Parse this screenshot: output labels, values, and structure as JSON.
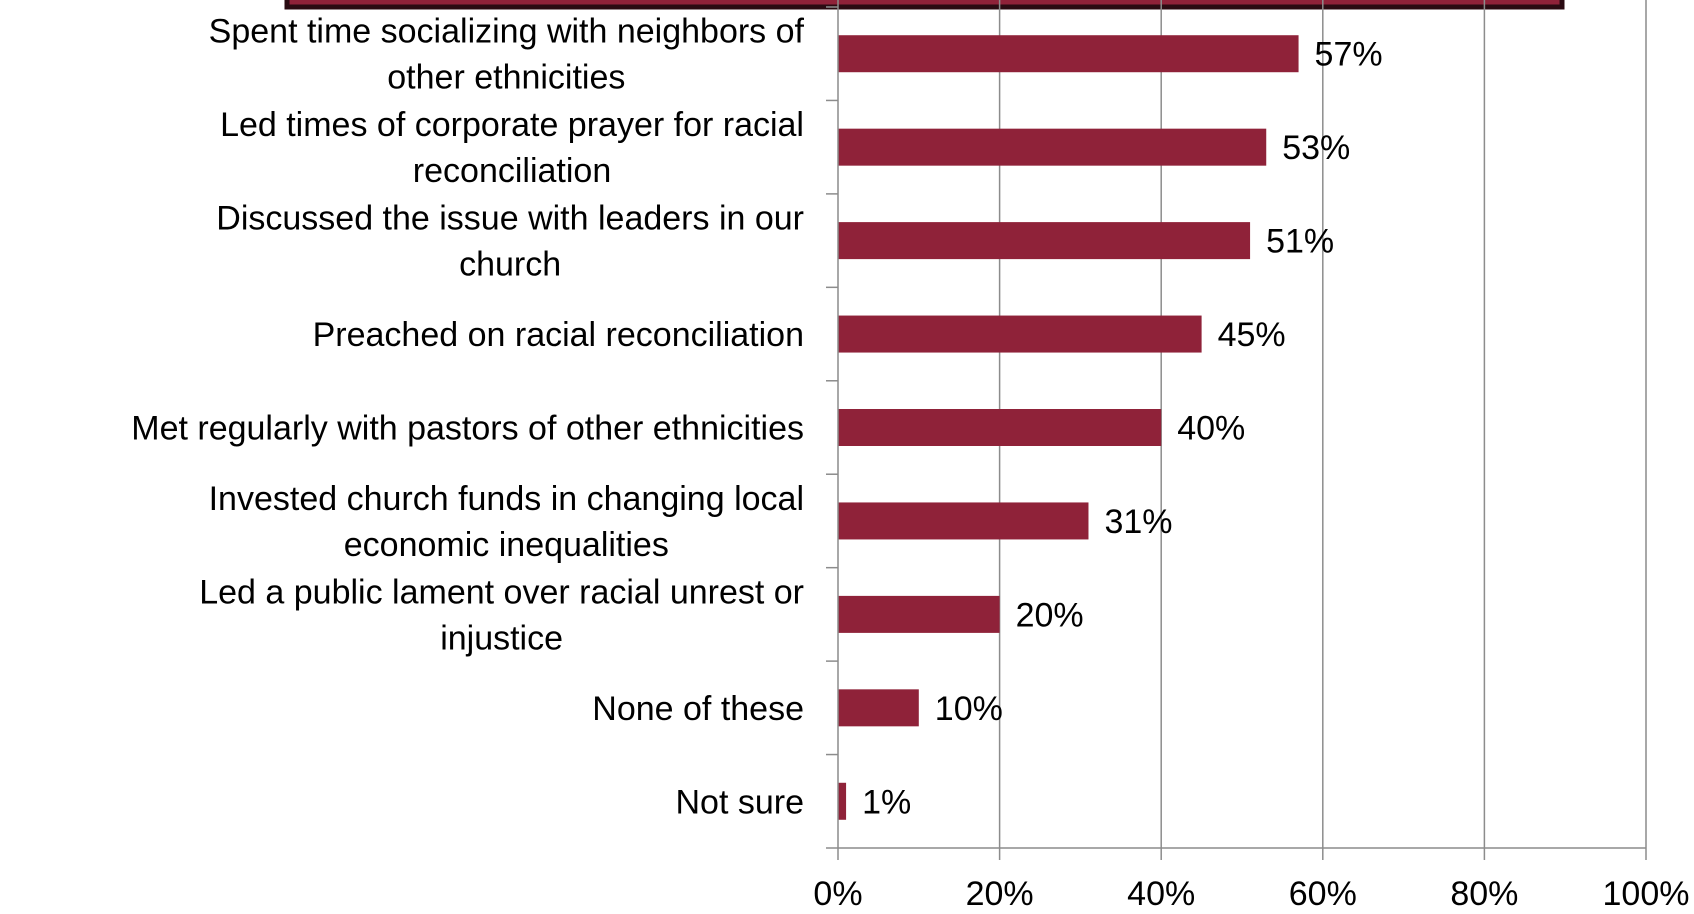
{
  "chart_data": {
    "type": "bar",
    "orientation": "horizontal",
    "categories": [
      "Spent time socializing with neighbors of other ethnicities",
      "Led times of corporate prayer for racial reconciliation",
      "Discussed the issue with leaders in our church",
      "Preached on racial reconciliation",
      "Met regularly with pastors of other ethnicities",
      "Invested church funds in changing local economic inequalities",
      "Led a public lament over racial unrest or injustice",
      "None of these",
      "Not sure"
    ],
    "category_label_lines": [
      [
        "Spent time socializing with neighbors of",
        "other ethnicities"
      ],
      [
        "Led times of corporate prayer for racial",
        "reconciliation"
      ],
      [
        "Discussed the issue with leaders in our",
        "church"
      ],
      [
        "Preached on racial reconciliation"
      ],
      [
        "Met regularly with pastors of other ethnicities"
      ],
      [
        "Invested church funds in changing local",
        "economic inequalities"
      ],
      [
        "Led a public lament over racial unrest or",
        "injustice"
      ],
      [
        "None of these"
      ],
      [
        "Not sure"
      ]
    ],
    "values": [
      57,
      53,
      51,
      45,
      40,
      31,
      20,
      10,
      1
    ],
    "data_labels": [
      "57%",
      "53%",
      "51%",
      "45%",
      "40%",
      "31%",
      "20%",
      "10%",
      "1%"
    ],
    "x_ticks": [
      "0%",
      "20%",
      "40%",
      "60%",
      "80%",
      "100%"
    ],
    "xlim": [
      0,
      100
    ],
    "grid": true,
    "legend": "none",
    "bar_color": "#8f2239",
    "title_box_fill": "#8f2239",
    "title_box_border": "#2a0b12",
    "grid_color": "#8c8c8c"
  }
}
